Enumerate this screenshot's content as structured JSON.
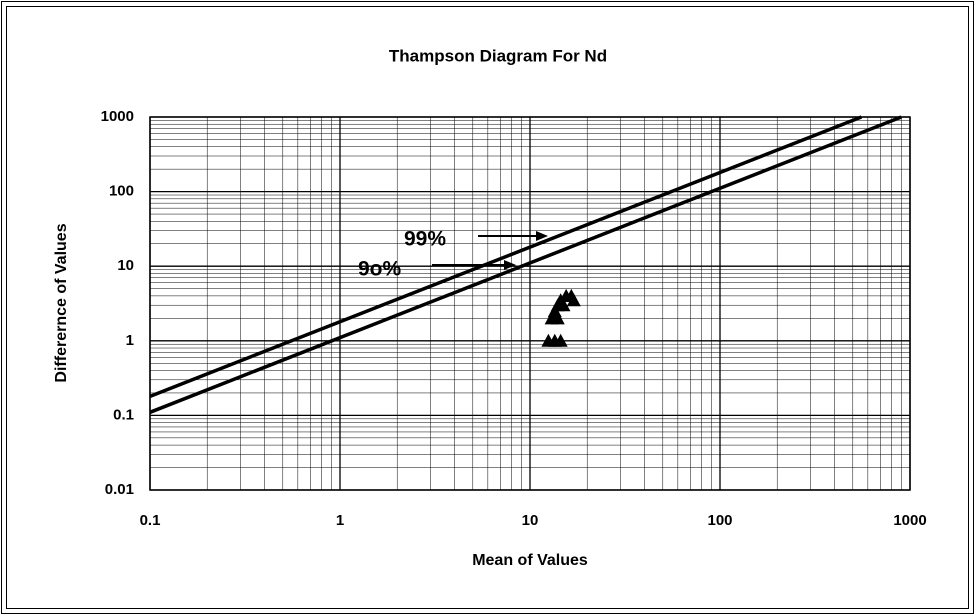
{
  "chart_data": {
    "type": "scatter",
    "title": "Thampson Diagram For Nd",
    "xlabel": "Mean of Values",
    "ylabel": "Differernce of Values",
    "log_x": true,
    "log_y": true,
    "grid": true,
    "minor_grid": true,
    "xlim": [
      0.1,
      1000
    ],
    "xticks": [
      0.1,
      1,
      10,
      100,
      1000
    ],
    "ylim": [
      0.01,
      1000
    ],
    "yticks": [
      0.01,
      0.1,
      1,
      10,
      100,
      1000
    ],
    "series": [
      {
        "name": "99%",
        "style": "line",
        "color": "#000000",
        "x": [
          0.1,
          555
        ],
        "values": [
          0.18,
          1000
        ]
      },
      {
        "name": "9o%",
        "style": "line",
        "color": "#000000",
        "x": [
          0.1,
          900
        ],
        "values": [
          0.11,
          1000
        ]
      },
      {
        "style": "triangle",
        "color": "#000000",
        "x": [
          12.5,
          13.5,
          14.5,
          13,
          14,
          13.5,
          14,
          15,
          14.5,
          15.5,
          16.5,
          17
        ],
        "values": [
          1,
          1,
          1,
          2,
          2,
          2.5,
          3,
          3,
          3.5,
          4,
          4,
          3.5
        ]
      }
    ]
  }
}
